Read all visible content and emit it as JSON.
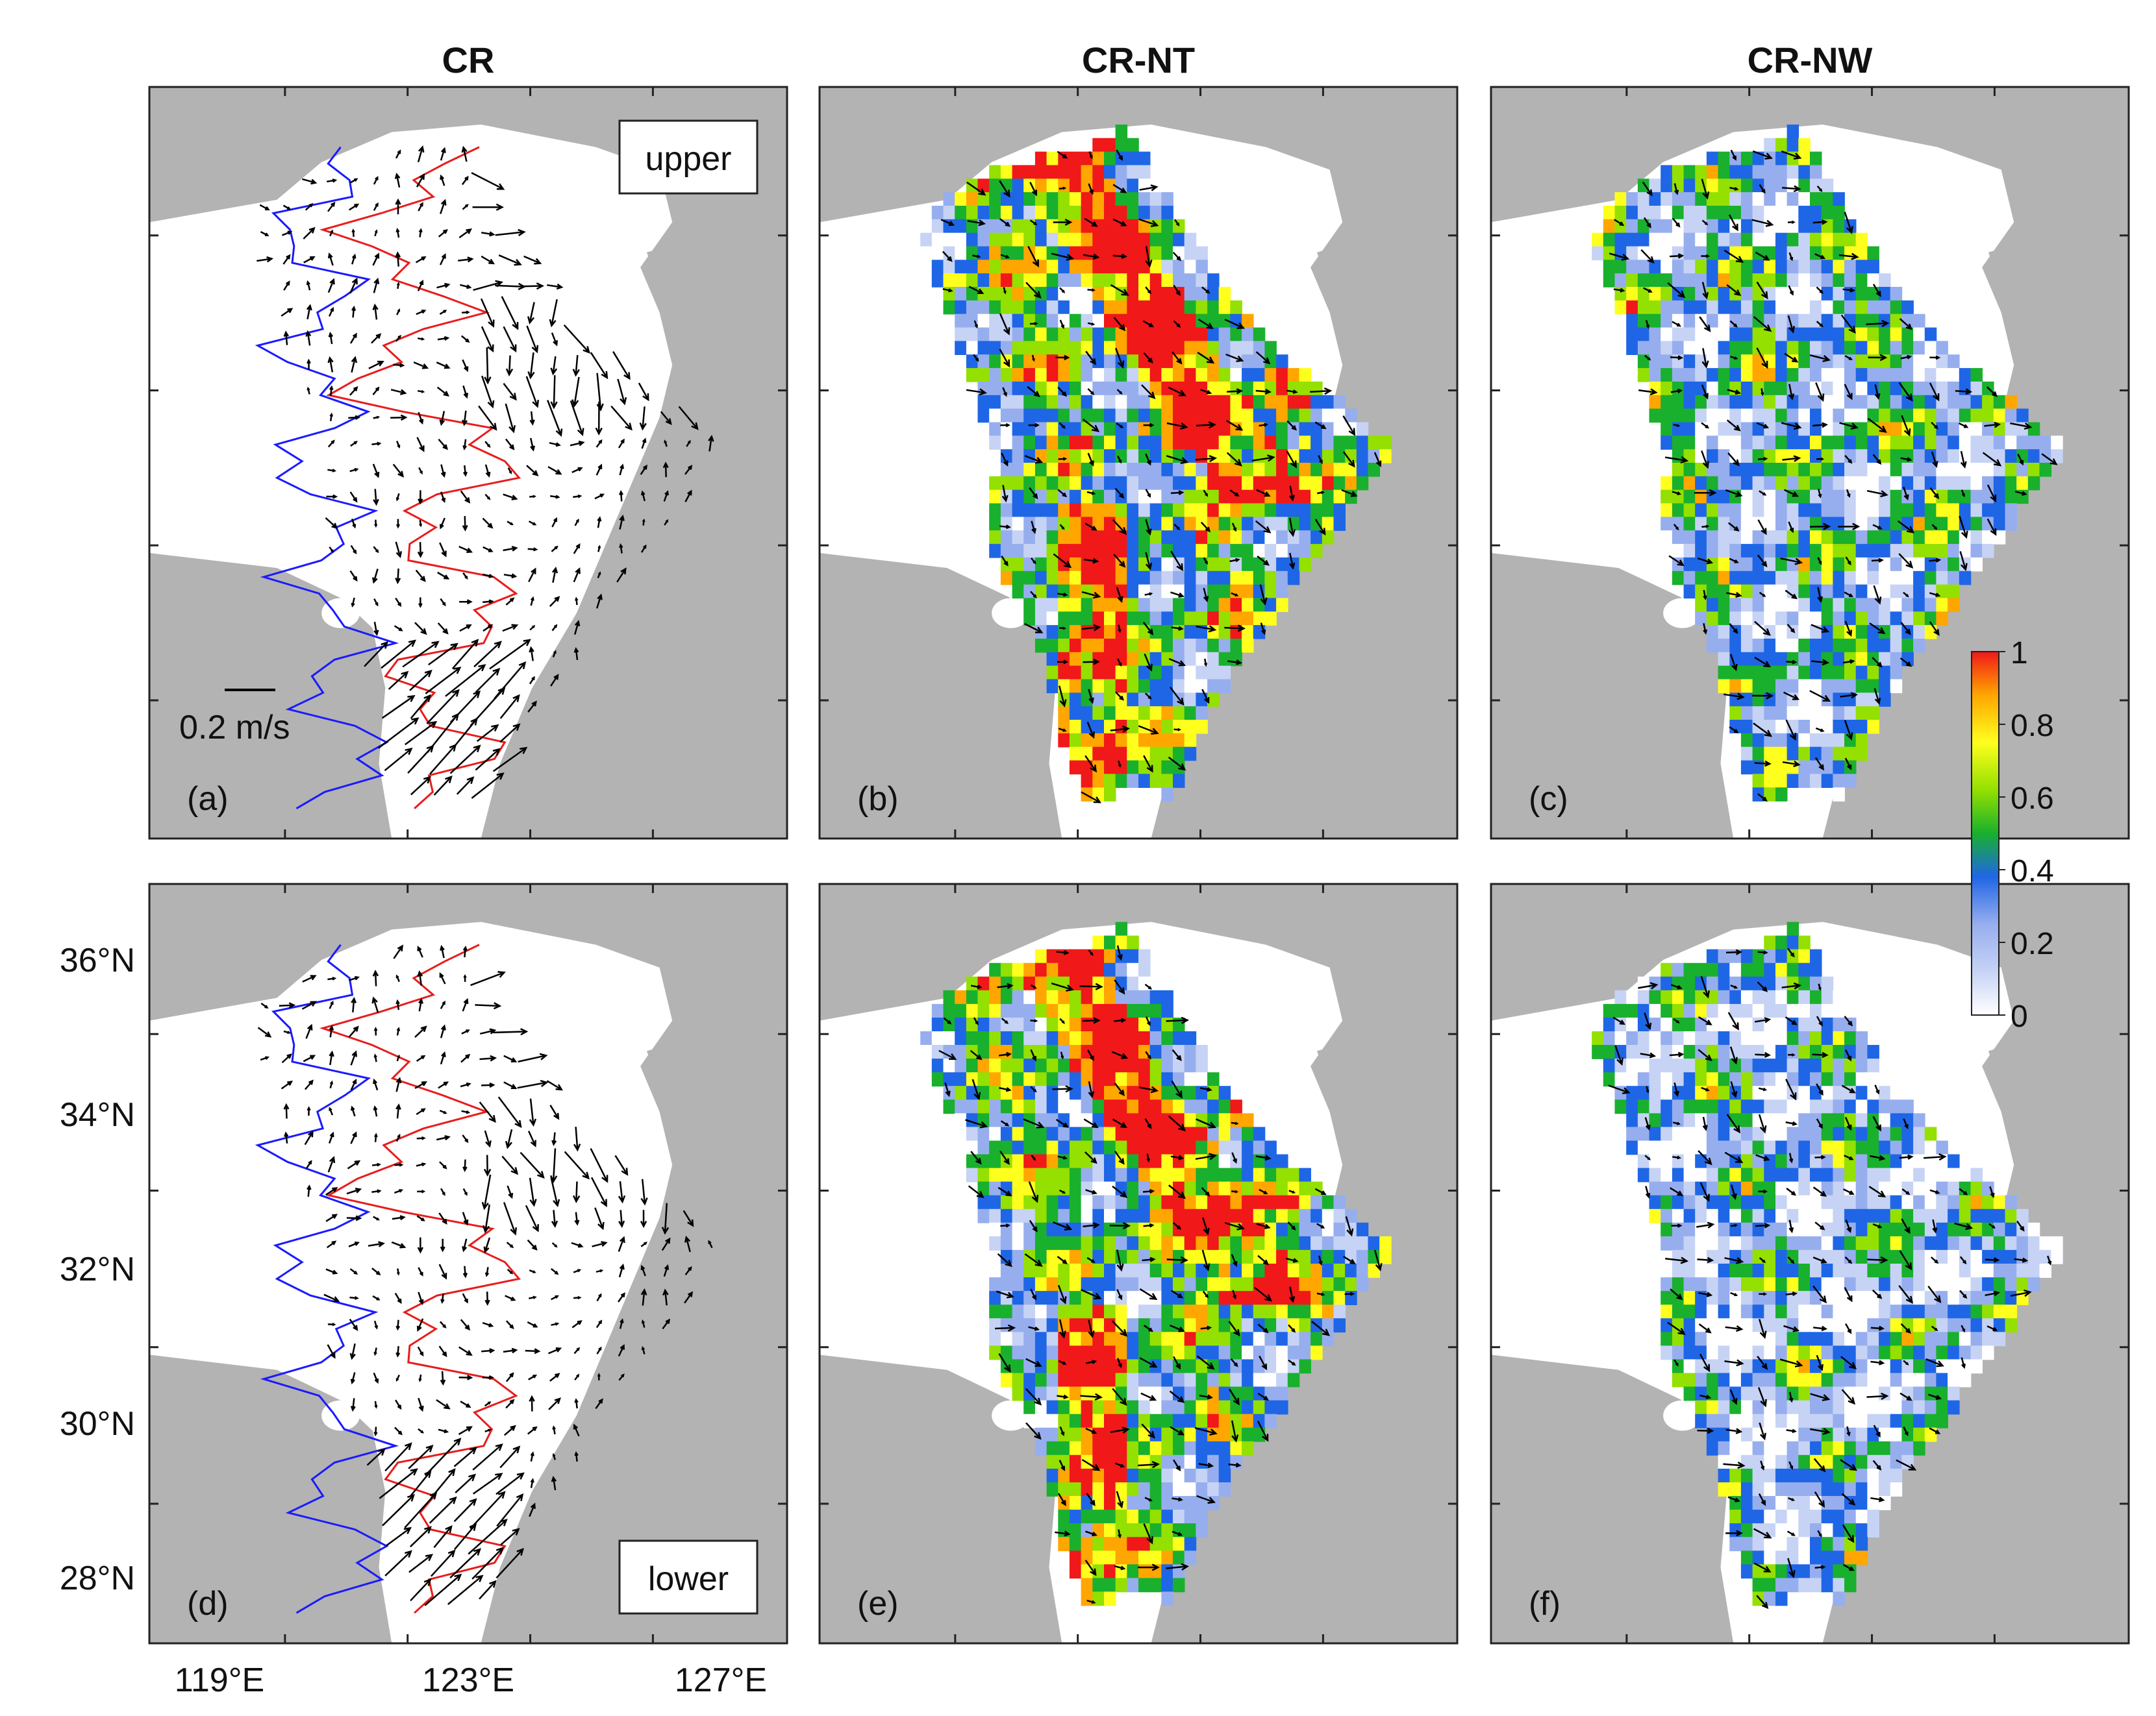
{
  "colors": {
    "land": "#b3b3b3",
    "sea": "#ffffff",
    "contour_a": "#1a1aff",
    "contour_b": "#e81c1c",
    "arrow": "#000000"
  },
  "panels": [
    {
      "id": "a",
      "title": "CR",
      "label": "(a)",
      "layer_label": "upper",
      "scale_label": "0.2 m/s",
      "type": "vectors"
    },
    {
      "id": "b",
      "title": "CR-NT",
      "label": "(b)",
      "type": "field"
    },
    {
      "id": "c",
      "title": "CR-NW",
      "label": "(c)",
      "type": "field"
    },
    {
      "id": "d",
      "label": "(d)",
      "layer_label": "lower",
      "type": "vectors"
    },
    {
      "id": "e",
      "label": "(e)",
      "type": "field"
    },
    {
      "id": "f",
      "label": "(f)",
      "type": "field"
    }
  ],
  "axes": {
    "lat_labels": [
      "36°N",
      "34°N",
      "32°N",
      "30°N",
      "28°N"
    ],
    "lon_labels": [
      "119°E",
      "123°E",
      "127°E"
    ],
    "lat_range": [
      27,
      37
    ],
    "lon_range": [
      118,
      128
    ]
  },
  "colorbar": {
    "ticks": [
      "1",
      "0.8",
      "0.6",
      "0.4",
      "0.2",
      "0"
    ],
    "colors": [
      "#ffffff",
      "#c6d3f5",
      "#97aeee",
      "#1f66e6",
      "#19b02d",
      "#94e000",
      "#ffff1e",
      "#ffa600",
      "#f01818"
    ]
  }
}
